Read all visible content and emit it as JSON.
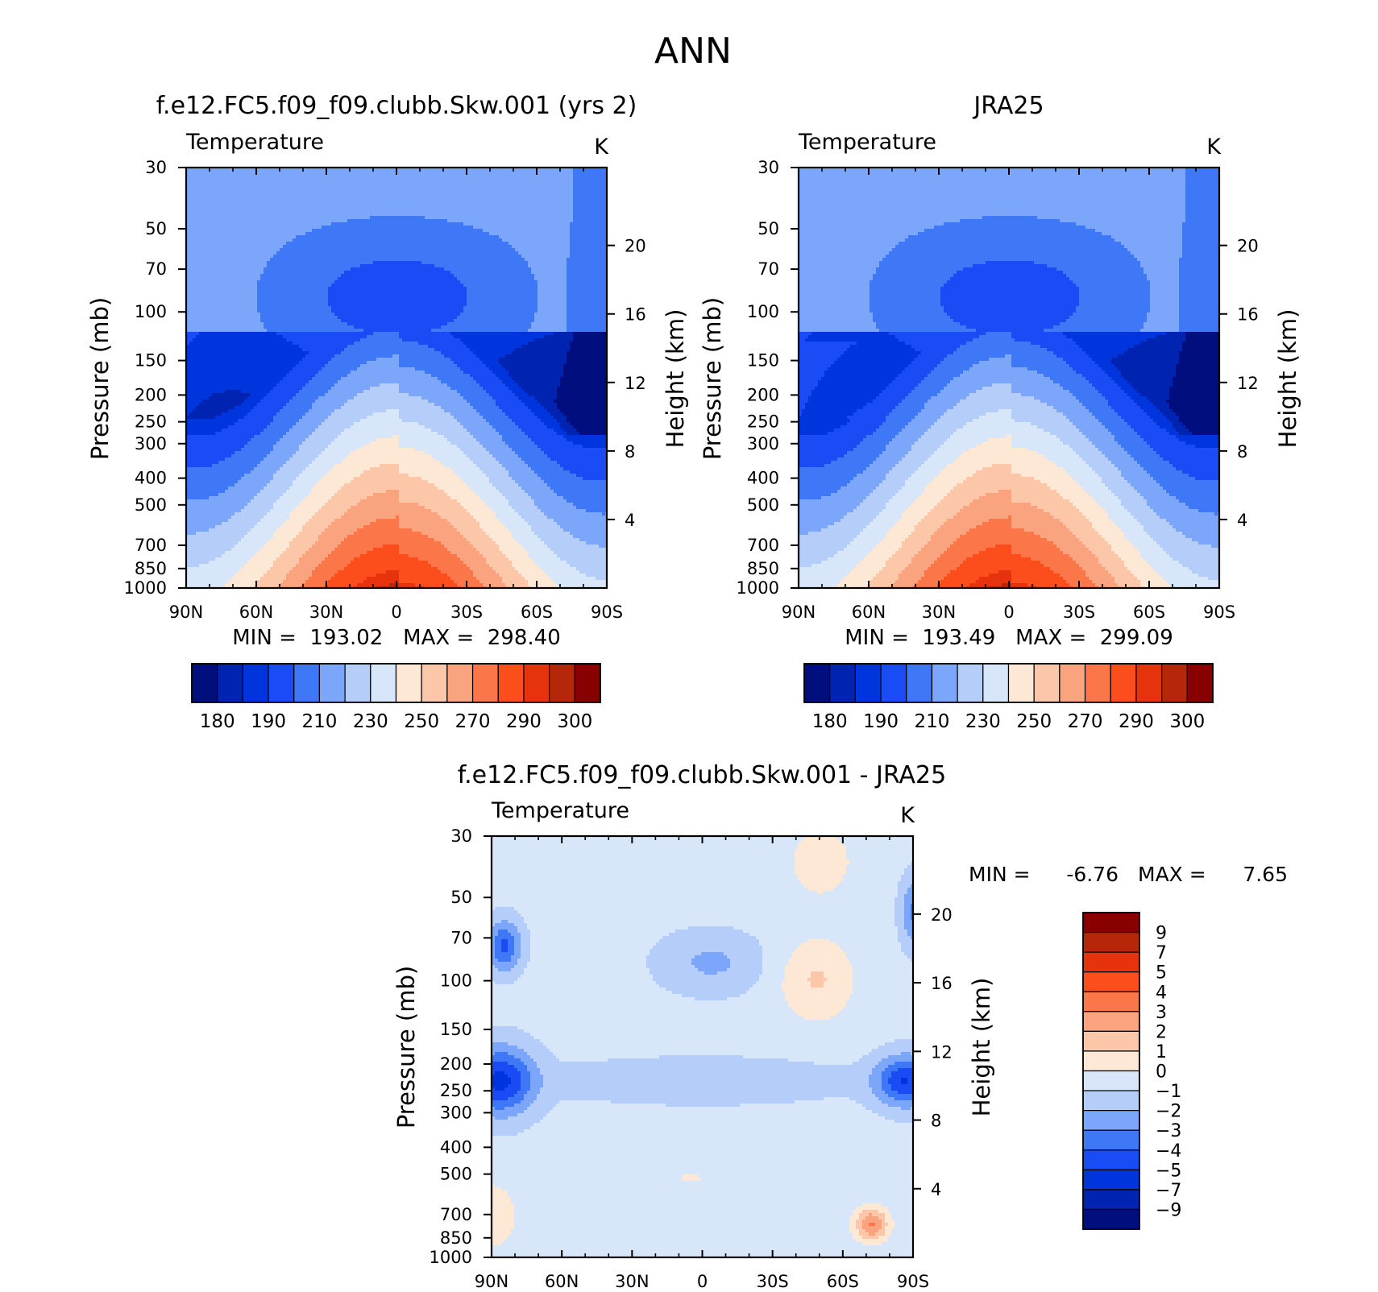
{
  "title": "ANN",
  "colors": {
    "abs_palette": [
      "#000e7e",
      "#0024b2",
      "#0034dc",
      "#1a4cf6",
      "#3f78f6",
      "#7ca6fa",
      "#b4cdf9",
      "#d7e7f9",
      "#fde8d6",
      "#fbc7a8",
      "#f9a47e",
      "#fb7648",
      "#fc4e1c",
      "#e6330e",
      "#b62608",
      "#880000"
    ],
    "diff_palette": [
      "#000e7e",
      "#0024b2",
      "#0034dc",
      "#1a4cf6",
      "#3f78f6",
      "#7ca6fa",
      "#b4cdf9",
      "#d7e7f9",
      "#fde8d6",
      "#fbc7a8",
      "#f9a47e",
      "#fb7648",
      "#fc4e1c",
      "#e6330e",
      "#b62608",
      "#880000"
    ]
  },
  "chart_data": [
    {
      "type": "contour",
      "id": "model",
      "title": "f.e12.FC5.f09_f09.clubb.Skw.001 (yrs 2)",
      "subtitle_left": "Temperature",
      "subtitle_right": "K",
      "xlabel": "",
      "ylabel": "Pressure (mb)",
      "y2label": "Height (km)",
      "x_ticks": [
        "90N",
        "60N",
        "30N",
        "0",
        "30S",
        "60S",
        "90S"
      ],
      "y_ticks": [
        "30",
        "50",
        "70",
        "100",
        "150",
        "200",
        "250",
        "300",
        "400",
        "500",
        "700",
        "850",
        "1000"
      ],
      "y2_ticks": [
        "20",
        "16",
        "12",
        "8",
        "4"
      ],
      "stats": "MIN =  193.02   MAX =  298.40",
      "colorbar_labels": [
        "180",
        "190",
        "210",
        "230",
        "250",
        "270",
        "290",
        "300"
      ],
      "contour_levels": [
        180,
        185,
        190,
        200,
        210,
        220,
        230,
        240,
        250,
        260,
        270,
        280,
        290,
        295,
        300
      ],
      "min": 193.02,
      "max": 298.4
    },
    {
      "type": "contour",
      "id": "obs",
      "title": "JRA25",
      "subtitle_left": "Temperature",
      "subtitle_right": "K",
      "xlabel": "",
      "ylabel": "Pressure (mb)",
      "y2label": "Height (km)",
      "x_ticks": [
        "90N",
        "60N",
        "30N",
        "0",
        "30S",
        "60S",
        "90S"
      ],
      "y_ticks": [
        "30",
        "50",
        "70",
        "100",
        "150",
        "200",
        "250",
        "300",
        "400",
        "500",
        "700",
        "850",
        "1000"
      ],
      "y2_ticks": [
        "20",
        "16",
        "12",
        "8",
        "4"
      ],
      "stats": "MIN =  193.49   MAX =  299.09",
      "colorbar_labels": [
        "180",
        "190",
        "210",
        "230",
        "250",
        "270",
        "290",
        "300"
      ],
      "contour_levels": [
        180,
        185,
        190,
        200,
        210,
        220,
        230,
        240,
        250,
        260,
        270,
        280,
        290,
        295,
        300
      ],
      "min": 193.49,
      "max": 299.09
    },
    {
      "type": "contour",
      "id": "diff",
      "title": "f.e12.FC5.f09_f09.clubb.Skw.001 - JRA25",
      "subtitle_left": "Temperature",
      "subtitle_right": "K",
      "xlabel": "",
      "ylabel": "Pressure (mb)",
      "y2label": "Height (km)",
      "x_ticks": [
        "90N",
        "60N",
        "30N",
        "0",
        "30S",
        "60S",
        "90S"
      ],
      "y_ticks": [
        "30",
        "50",
        "70",
        "100",
        "150",
        "200",
        "250",
        "300",
        "400",
        "500",
        "700",
        "850",
        "1000"
      ],
      "y2_ticks": [
        "20",
        "16",
        "12",
        "8",
        "4"
      ],
      "stats_min_label": "MIN =",
      "stats_min_value": "-6.76",
      "stats_max_label": "MAX =",
      "stats_max_value": "7.65",
      "colorbar_labels": [
        "9",
        "7",
        "5",
        "4",
        "3",
        "2",
        "1",
        "0",
        "-1",
        "-2",
        "-3",
        "-4",
        "-5",
        "-7",
        "-9"
      ],
      "contour_levels": [
        -9,
        -7,
        -5,
        -4,
        -3,
        -2,
        -1,
        0,
        1,
        2,
        3,
        4,
        5,
        7,
        9
      ],
      "min": -6.76,
      "max": 7.65
    }
  ]
}
